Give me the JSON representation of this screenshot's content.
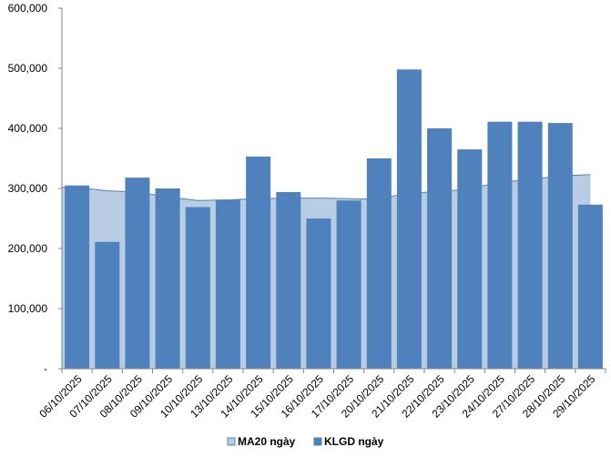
{
  "chart_data": {
    "type": "bar",
    "categories": [
      "06/10/2025",
      "07/10/2025",
      "08/10/2025",
      "09/10/2025",
      "10/10/2025",
      "13/10/2025",
      "14/10/2025",
      "15/10/2025",
      "16/10/2025",
      "17/10/2025",
      "20/10/2025",
      "21/10/2025",
      "22/10/2025",
      "23/10/2025",
      "24/10/2025",
      "27/10/2025",
      "28/10/2025",
      "29/10/2025"
    ],
    "series": [
      {
        "name": "MA20 ngày",
        "kind": "area",
        "color": "#b8cce4",
        "line_color": "#4f81bd",
        "values": [
          302000,
          296000,
          294000,
          286000,
          280000,
          281000,
          283000,
          284000,
          284000,
          283000,
          282000,
          293000,
          294000,
          300000,
          310000,
          315000,
          321000,
          323000
        ]
      },
      {
        "name": "KLGD ngày",
        "kind": "bar",
        "color": "#4f81bd",
        "values": [
          305000,
          211000,
          318000,
          300000,
          269000,
          281000,
          353000,
          294000,
          250000,
          280000,
          350000,
          498000,
          400000,
          365000,
          411000,
          411000,
          409000,
          273000
        ]
      }
    ],
    "yticks": [
      "-",
      "100,000",
      "200,000",
      "300,000",
      "400,000",
      "500,000",
      "600,000"
    ],
    "ylim": [
      0,
      600000
    ],
    "xlabel": "",
    "ylabel": "",
    "title": "",
    "legend_position": "bottom",
    "grid": false
  }
}
